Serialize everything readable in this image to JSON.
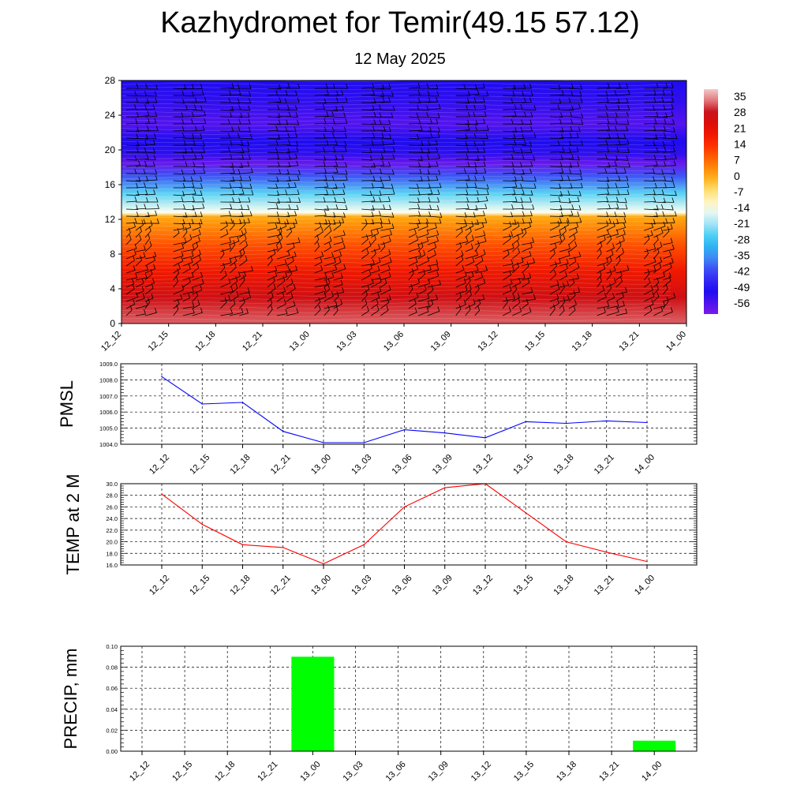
{
  "header": {
    "title": "Kazhydromet for Temir(49.15 57.12)",
    "subtitle": "12 May 2025"
  },
  "chart_data": [
    {
      "type": "heatmap",
      "name": "vertical-profile",
      "x_categories": [
        "12_12",
        "12_15",
        "12_18",
        "12_21",
        "13_00",
        "13_03",
        "13_06",
        "13_09",
        "13_12",
        "13_15",
        "13_18",
        "13_21",
        "14_00"
      ],
      "y_ticks": [
        0,
        4,
        8,
        12,
        16,
        20,
        24,
        28
      ],
      "ylim": [
        0,
        28
      ],
      "colorbar": {
        "labels": [
          "35",
          "28",
          "21",
          "14",
          "7",
          "0",
          "-7",
          "-14",
          "-21",
          "-28",
          "-35",
          "-42",
          "-49",
          "-56"
        ],
        "range": [
          -60,
          38
        ]
      },
      "profile": [
        {
          "h": 0,
          "t": 32
        },
        {
          "h": 3,
          "t": 26
        },
        {
          "h": 6,
          "t": 18
        },
        {
          "h": 9,
          "t": 10
        },
        {
          "h": 12.3,
          "t": 0
        },
        {
          "h": 12.8,
          "t": -14
        },
        {
          "h": 15,
          "t": -25
        },
        {
          "h": 17,
          "t": -40
        },
        {
          "h": 18.5,
          "t": -58
        },
        {
          "h": 19.5,
          "t": -52
        },
        {
          "h": 21,
          "t": -50
        },
        {
          "h": 23,
          "t": -56
        },
        {
          "h": 25.5,
          "t": -52
        },
        {
          "h": 28,
          "t": -50
        }
      ],
      "wind_barbs": true
    },
    {
      "type": "line",
      "name": "pmsl",
      "ylabel": "PMSL",
      "x": [
        "12_12",
        "12_15",
        "12_18",
        "12_21",
        "13_00",
        "13_03",
        "13_06",
        "13_09",
        "13_12",
        "13_15",
        "13_18",
        "13_21",
        "14_00"
      ],
      "y_ticks": [
        "1004.0",
        "1005.0",
        "1006.0",
        "1007.0",
        "1008.0",
        "1009.0"
      ],
      "ylim": [
        1004,
        1009
      ],
      "series": [
        {
          "values": [
            1008.2,
            1006.5,
            1006.6,
            1004.8,
            1004.1,
            1004.1,
            1004.9,
            1004.7,
            1004.4,
            1005.4,
            1005.3,
            1005.45,
            1005.35
          ],
          "color": "#0000ff"
        }
      ]
    },
    {
      "type": "line",
      "name": "temp2m",
      "ylabel": "TEMP at 2 M",
      "x": [
        "12_12",
        "12_15",
        "12_18",
        "12_21",
        "13_00",
        "13_03",
        "13_06",
        "13_09",
        "13_12",
        "13_15",
        "13_18",
        "13_21",
        "14_00"
      ],
      "y_ticks": [
        "16.0",
        "18.0",
        "20.0",
        "22.0",
        "24.0",
        "26.0",
        "28.0",
        "30.0"
      ],
      "ylim": [
        16,
        30
      ],
      "series": [
        {
          "values": [
            28.2,
            23.0,
            19.5,
            19.0,
            16.2,
            19.5,
            26.0,
            29.3,
            30.0,
            25.0,
            20.0,
            18.2,
            16.6
          ],
          "color": "#ff0000"
        }
      ]
    },
    {
      "type": "bar",
      "name": "precip",
      "ylabel": "PRECIP, mm",
      "categories": [
        "12_12",
        "12_15",
        "12_18",
        "12_21",
        "13_00",
        "13_03",
        "13_06",
        "13_09",
        "13_12",
        "13_15",
        "13_18",
        "13_21",
        "14_00"
      ],
      "y_ticks": [
        "0.00",
        "0.02",
        "0.04",
        "0.06",
        "0.08",
        "0.10"
      ],
      "ylim": [
        0,
        0.1
      ],
      "values": [
        0,
        0,
        0,
        0,
        0.09,
        0,
        0,
        0,
        0,
        0,
        0,
        0,
        0.01
      ],
      "color": "#00ff00"
    }
  ]
}
